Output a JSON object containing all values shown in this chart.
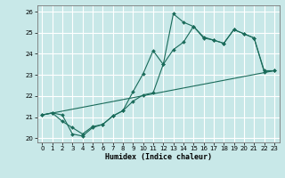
{
  "title": "",
  "xlabel": "Humidex (Indice chaleur)",
  "bg_color": "#c8e8e8",
  "grid_color": "#ffffff",
  "line_color": "#1a6b5a",
  "xlim": [
    -0.5,
    23.5
  ],
  "ylim": [
    19.8,
    26.3
  ],
  "yticks": [
    20,
    21,
    22,
    23,
    24,
    25,
    26
  ],
  "xticks": [
    0,
    1,
    2,
    3,
    4,
    5,
    6,
    7,
    8,
    9,
    10,
    11,
    12,
    13,
    14,
    15,
    16,
    17,
    18,
    19,
    20,
    21,
    22,
    23
  ],
  "line1_x": [
    0,
    1,
    2,
    3,
    4,
    5,
    6,
    7,
    8,
    9,
    10,
    11,
    12,
    13,
    14,
    15,
    16,
    17,
    18,
    19,
    20,
    21,
    22,
    23
  ],
  "line1_y": [
    21.1,
    21.2,
    21.1,
    20.2,
    20.1,
    20.5,
    20.65,
    21.05,
    21.3,
    21.75,
    22.05,
    22.15,
    23.5,
    24.2,
    24.55,
    25.3,
    24.75,
    24.65,
    24.5,
    25.15,
    24.95,
    24.75,
    23.2,
    23.2
  ],
  "line2_x": [
    0,
    1,
    2,
    3,
    4,
    5,
    6,
    7,
    8,
    9,
    10,
    11,
    12,
    13,
    14,
    15,
    16,
    17,
    18,
    19,
    20,
    21,
    22,
    23
  ],
  "line2_y": [
    21.1,
    21.2,
    20.8,
    20.5,
    20.2,
    20.55,
    20.65,
    21.05,
    21.3,
    22.2,
    23.05,
    24.15,
    23.5,
    25.9,
    25.5,
    25.3,
    24.8,
    24.65,
    24.5,
    25.15,
    24.95,
    24.75,
    23.15,
    23.2
  ],
  "line3_x": [
    0,
    23
  ],
  "line3_y": [
    21.1,
    23.2
  ]
}
